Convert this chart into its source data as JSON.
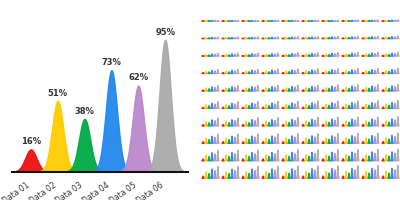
{
  "labels": [
    "Data 01",
    "Data 02",
    "Data 03",
    "Data 04",
    "Data 05",
    "Data 06"
  ],
  "percentages": [
    16,
    51,
    38,
    73,
    62,
    95
  ],
  "colors": [
    "#ee1111",
    "#ffcc00",
    "#00aa44",
    "#2288ee",
    "#bb88cc",
    "#aaaaaa"
  ],
  "bg_color": "#ffffff",
  "baseline_color": "#111111",
  "label_fontsize": 5.5,
  "pct_fontsize": 6,
  "mini_colors": [
    "#ee1111",
    "#ffcc00",
    "#00aa44",
    "#2288ee",
    "#bb88cc",
    "#aaaaaa"
  ],
  "grid_cols": 10,
  "grid_rows": 11
}
